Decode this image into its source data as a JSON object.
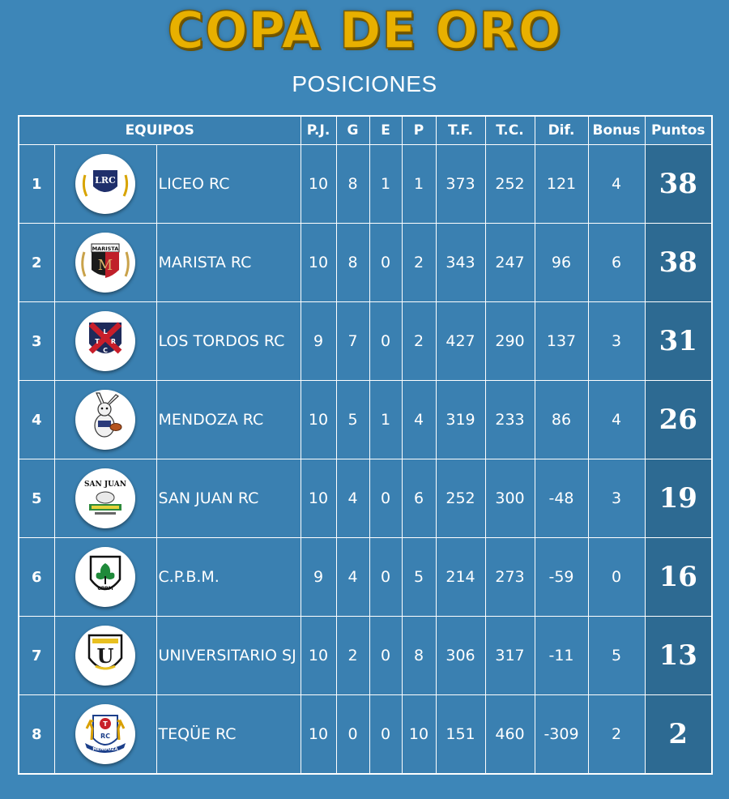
{
  "header": {
    "title": "COPA DE ORO",
    "subtitle": "POSICIONES"
  },
  "table": {
    "columns": {
      "equipos": "EQUIPOS",
      "pj": "P.J.",
      "g": "G",
      "e": "E",
      "p": "P",
      "tf": "T.F.",
      "tc": "T.C.",
      "dif": "Dif.",
      "bonus": "Bonus",
      "puntos": "Puntos"
    },
    "rows": [
      {
        "pos": "1",
        "team": "LICEO RC",
        "logo_label": "LRC",
        "logo_icon": "liceo-rc-logo-icon",
        "pj": "10",
        "g": "8",
        "e": "1",
        "p": "1",
        "tf": "373",
        "tc": "252",
        "dif": "121",
        "bonus": "4",
        "pts": "38"
      },
      {
        "pos": "2",
        "team": "MARISTA RC",
        "logo_label": "MARISTA",
        "logo_icon": "marista-rc-logo-icon",
        "pj": "10",
        "g": "8",
        "e": "0",
        "p": "2",
        "tf": "343",
        "tc": "247",
        "dif": "96",
        "bonus": "6",
        "pts": "38"
      },
      {
        "pos": "3",
        "team": "LOS TORDOS RC",
        "logo_label": "LTRC",
        "logo_icon": "los-tordos-rc-logo-icon",
        "pj": "9",
        "g": "7",
        "e": "0",
        "p": "2",
        "tf": "427",
        "tc": "290",
        "dif": "137",
        "bonus": "3",
        "pts": "31"
      },
      {
        "pos": "4",
        "team": "MENDOZA RC",
        "logo_label": "",
        "logo_icon": "mendoza-rc-logo-icon",
        "pj": "10",
        "g": "5",
        "e": "1",
        "p": "4",
        "tf": "319",
        "tc": "233",
        "dif": "86",
        "bonus": "4",
        "pts": "26"
      },
      {
        "pos": "5",
        "team": "SAN JUAN RC",
        "logo_label": "SAN JUAN",
        "logo_icon": "san-juan-rc-logo-icon",
        "pj": "10",
        "g": "4",
        "e": "0",
        "p": "6",
        "tf": "252",
        "tc": "300",
        "dif": "-48",
        "bonus": "3",
        "pts": "19"
      },
      {
        "pos": "6",
        "team": "C.P.B.M.",
        "logo_label": "CPBM",
        "logo_icon": "cpbm-logo-icon",
        "pj": "9",
        "g": "4",
        "e": "0",
        "p": "5",
        "tf": "214",
        "tc": "273",
        "dif": "-59",
        "bonus": "0",
        "pts": "16"
      },
      {
        "pos": "7",
        "team": "UNIVERSITARIO SJ",
        "logo_label": "U",
        "logo_icon": "universitario-sj-logo-icon",
        "pj": "10",
        "g": "2",
        "e": "0",
        "p": "8",
        "tf": "306",
        "tc": "317",
        "dif": "-11",
        "bonus": "5",
        "pts": "13"
      },
      {
        "pos": "8",
        "team": "TEQÜE RC",
        "logo_label": "MENDOZA",
        "logo_icon": "teque-rc-logo-icon",
        "pj": "10",
        "g": "0",
        "e": "0",
        "p": "10",
        "tf": "151",
        "tc": "460",
        "dif": "-309",
        "bonus": "2",
        "pts": "2"
      }
    ]
  },
  "colors": {
    "background": "#3d86b8",
    "title_gold": "#e8b000",
    "points_column": "#2d6a92",
    "grid_lines": "#ffffff"
  }
}
